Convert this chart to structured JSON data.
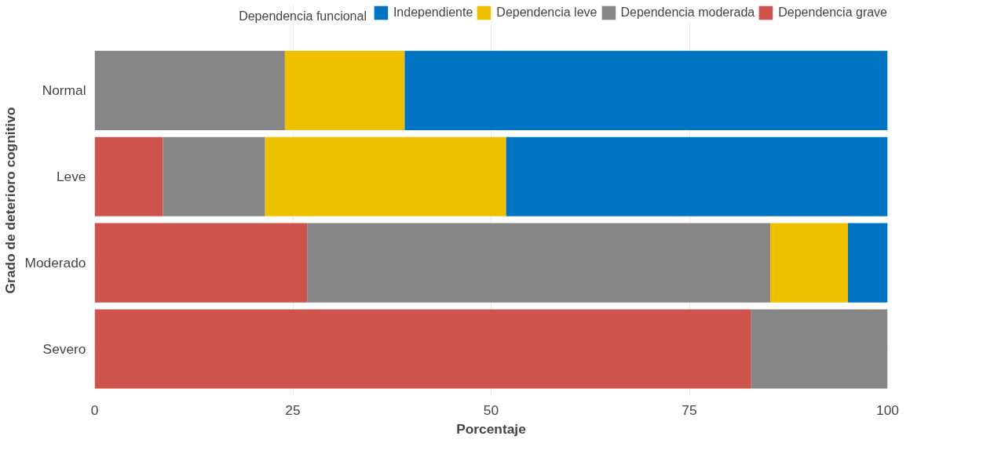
{
  "chart_data": {
    "type": "bar",
    "orientation": "horizontal",
    "stacked": true,
    "xlabel": "Porcentaje",
    "ylabel": "Grado de deterioro cognitivo",
    "legend_title": "Dependencia funcional",
    "legend": "top",
    "grid": true,
    "categories": [
      "Normal",
      "Leve",
      "Moderado",
      "Severo"
    ],
    "series": [
      {
        "name": "Dependencia grave",
        "color": "#cd534c",
        "values": [
          0,
          8.6,
          26.8,
          82.8
        ]
      },
      {
        "name": "Dependencia moderada",
        "color": "#868686",
        "values": [
          24,
          12.9,
          58.4,
          17.2
        ]
      },
      {
        "name": "Dependencia leve",
        "color": "#efc000",
        "values": [
          15.1,
          30.4,
          9.8,
          0
        ]
      },
      {
        "name": "Independiente",
        "color": "#0073c2",
        "values": [
          60.9,
          48.1,
          5.0,
          0
        ]
      }
    ],
    "xlim": [
      0,
      100
    ],
    "xticks": [
      0,
      25,
      50,
      75,
      100
    ]
  }
}
